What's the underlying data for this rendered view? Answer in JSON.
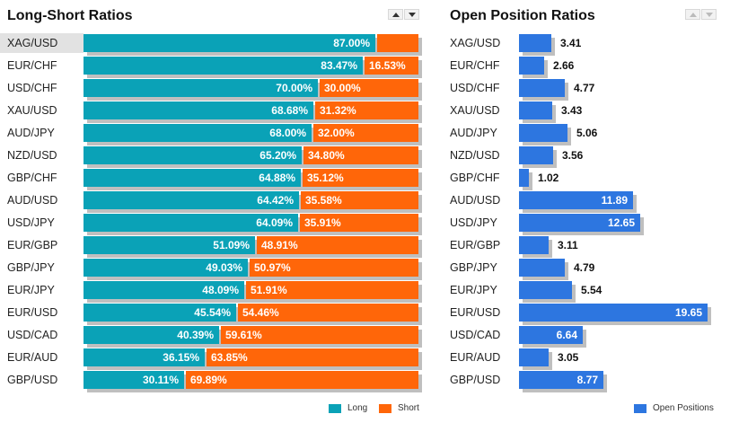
{
  "colors": {
    "long": "#0aa2b7",
    "short": "#ff6609",
    "open": "#2d76e0",
    "shadow": "#bfbfbf",
    "highlight": "#e2e2e2"
  },
  "long_short": {
    "title": "Long-Short Ratios",
    "legend": {
      "long": "Long",
      "short": "Short"
    }
  },
  "open_position": {
    "title": "Open Position Ratios",
    "legend": {
      "open": "Open Positions"
    }
  },
  "chart_data": [
    {
      "type": "bar",
      "title": "Long-Short Ratios",
      "orientation": "horizontal",
      "stacked": true,
      "unit": "%",
      "categories": [
        "XAG/USD",
        "EUR/CHF",
        "USD/CHF",
        "XAU/USD",
        "AUD/JPY",
        "NZD/USD",
        "GBP/CHF",
        "AUD/USD",
        "USD/JPY",
        "EUR/GBP",
        "GBP/JPY",
        "EUR/JPY",
        "EUR/USD",
        "USD/CAD",
        "EUR/AUD",
        "GBP/USD"
      ],
      "series": [
        {
          "name": "Long",
          "values": [
            87.0,
            83.47,
            70.0,
            68.68,
            68.0,
            65.2,
            64.88,
            64.42,
            64.09,
            51.09,
            49.03,
            48.09,
            45.54,
            40.39,
            36.15,
            30.11
          ]
        },
        {
          "name": "Short",
          "values": [
            13.0,
            16.53,
            30.0,
            31.32,
            32.0,
            34.8,
            35.12,
            35.58,
            35.91,
            48.91,
            50.97,
            51.91,
            54.46,
            59.61,
            63.85,
            69.89
          ]
        }
      ],
      "labels": {
        "Long": [
          "87.00%",
          "83.47%",
          "70.00%",
          "68.68%",
          "68.00%",
          "65.20%",
          "64.88%",
          "64.42%",
          "64.09%",
          "51.09%",
          "49.03%",
          "48.09%",
          "45.54%",
          "40.39%",
          "36.15%",
          "30.11%"
        ],
        "Short": [
          "",
          "16.53%",
          "30.00%",
          "31.32%",
          "32.00%",
          "34.80%",
          "35.12%",
          "35.58%",
          "35.91%",
          "48.91%",
          "50.97%",
          "51.91%",
          "54.46%",
          "59.61%",
          "63.85%",
          "69.89%"
        ]
      },
      "xlim": [
        0,
        100
      ],
      "highlighted_category": "XAG/USD",
      "legend_position": "bottom-right"
    },
    {
      "type": "bar",
      "title": "Open Position Ratios",
      "orientation": "horizontal",
      "categories": [
        "XAG/USD",
        "EUR/CHF",
        "USD/CHF",
        "XAU/USD",
        "AUD/JPY",
        "NZD/USD",
        "GBP/CHF",
        "AUD/USD",
        "USD/JPY",
        "EUR/GBP",
        "GBP/JPY",
        "EUR/JPY",
        "EUR/USD",
        "USD/CAD",
        "EUR/AUD",
        "GBP/USD"
      ],
      "series": [
        {
          "name": "Open Positions",
          "values": [
            3.41,
            2.66,
            4.77,
            3.43,
            5.06,
            3.56,
            1.02,
            11.89,
            12.65,
            3.11,
            4.79,
            5.54,
            19.65,
            6.64,
            3.05,
            8.77
          ]
        }
      ],
      "labels": [
        "3.41",
        "2.66",
        "4.77",
        "3.43",
        "5.06",
        "3.56",
        "1.02",
        "11.89",
        "12.65",
        "3.11",
        "4.79",
        "5.54",
        "19.65",
        "6.64",
        "3.05",
        "8.77"
      ],
      "xlim": [
        0,
        19.65
      ],
      "legend_position": "bottom-right"
    }
  ]
}
